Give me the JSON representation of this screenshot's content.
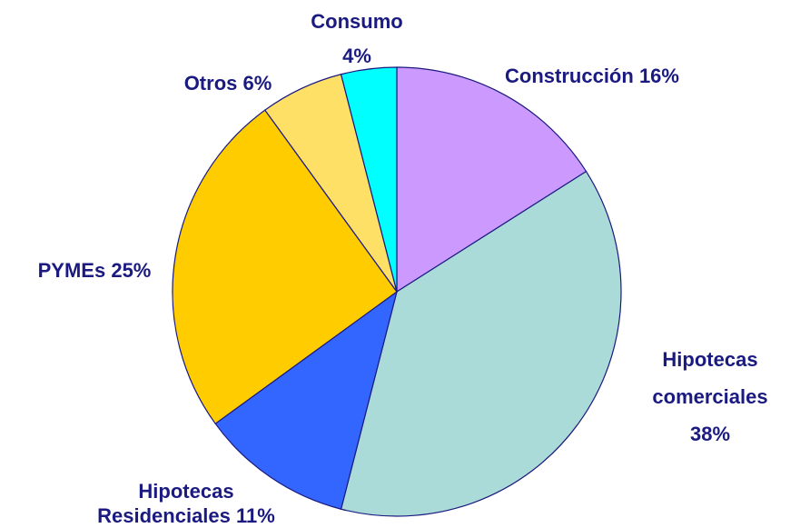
{
  "chart_data": {
    "type": "pie",
    "categories": [
      "Construcción",
      "Hipotecas comerciales",
      "Hipotecas Residenciales",
      "PYMEs",
      "Otros",
      "Consumo"
    ],
    "values": [
      16,
      38,
      11,
      25,
      6,
      4
    ],
    "value_labels": [
      "16%",
      "38%",
      "11%",
      "25%",
      "6%",
      "4%"
    ],
    "colors": [
      "#cc99ff",
      "#aadbd8",
      "#3366ff",
      "#ffcc00",
      "#ffe066",
      "#00ffff"
    ]
  }
}
